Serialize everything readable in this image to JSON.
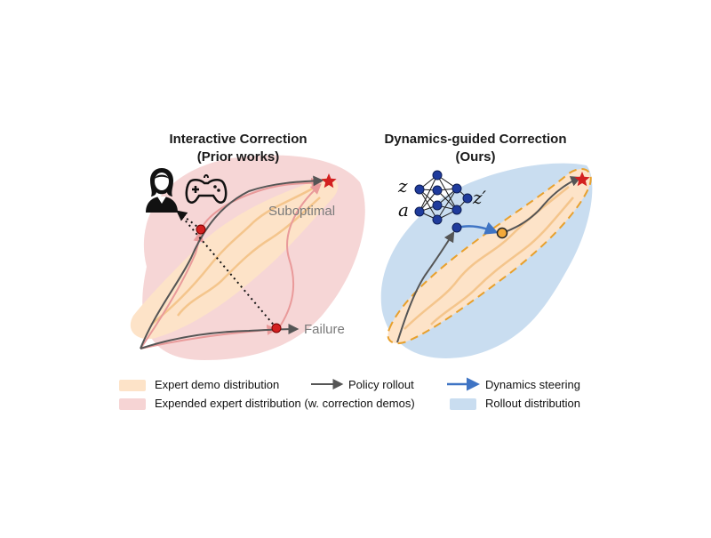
{
  "panels": {
    "left": {
      "title_line1": "Interactive Correction",
      "title_line2": "(Prior works)",
      "labels": {
        "suboptimal": "Suboptimal",
        "failure": "Failure"
      },
      "icons": [
        "person-icon",
        "gamepad-icon"
      ]
    },
    "right": {
      "title_line1": "Dynamics-guided Correction",
      "title_line2": "(Ours)",
      "network_labels": {
        "z": "z",
        "z_prime": "z′",
        "a": "a"
      },
      "icons": [
        "network-icon"
      ]
    }
  },
  "legend": {
    "expert_demo": "Expert demo distribution",
    "expended_expert": "Expended expert distribution (w. correction demos)",
    "policy_rollout": "Policy rollout",
    "dynamics_steering": "Dynamics steering",
    "rollout_distribution": "Rollout distribution"
  },
  "colors": {
    "expert_demo": "#fde3c8",
    "expert_line": "#f4c58c",
    "expended_expert": "#f6d4d4",
    "rollout_distribution": "#c9ddf0",
    "policy_rollout": "#555555",
    "dynamics_steering": "#3f74c4",
    "correction_line": "#e99a9a",
    "failure_dot": "#d32020",
    "goal_star": "#d32020",
    "dashed_border": "#e8a02c",
    "network_node": "#1f3b9c"
  }
}
